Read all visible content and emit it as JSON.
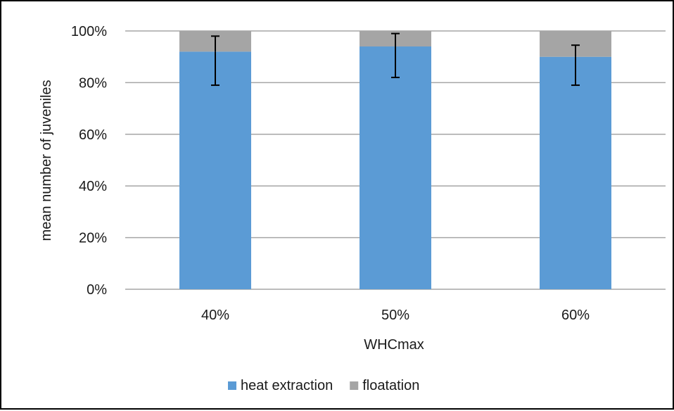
{
  "chart_data": {
    "type": "bar",
    "stacked": true,
    "categories": [
      "40%",
      "50%",
      "60%"
    ],
    "series": [
      {
        "name": "heat extraction",
        "color": "#5b9bd5",
        "values": [
          92,
          94,
          90
        ]
      },
      {
        "name": "floatation",
        "color": "#a5a5a5",
        "values": [
          8,
          6,
          10
        ]
      }
    ],
    "error_bars": {
      "heat extraction": {
        "lower": [
          79,
          82,
          79
        ],
        "upper": [
          92,
          94,
          90
        ]
      },
      "floatation": {
        "lower": [
          92,
          94,
          90
        ],
        "upper": [
          98,
          99,
          94.5
        ]
      }
    },
    "xlabel": "WHCmax",
    "ylabel": "mean number of juveniles",
    "ylim": [
      0,
      100
    ],
    "yticks": [
      "0%",
      "20%",
      "40%",
      "60%",
      "80%",
      "100%"
    ],
    "grid": true,
    "legend_position": "bottom"
  }
}
